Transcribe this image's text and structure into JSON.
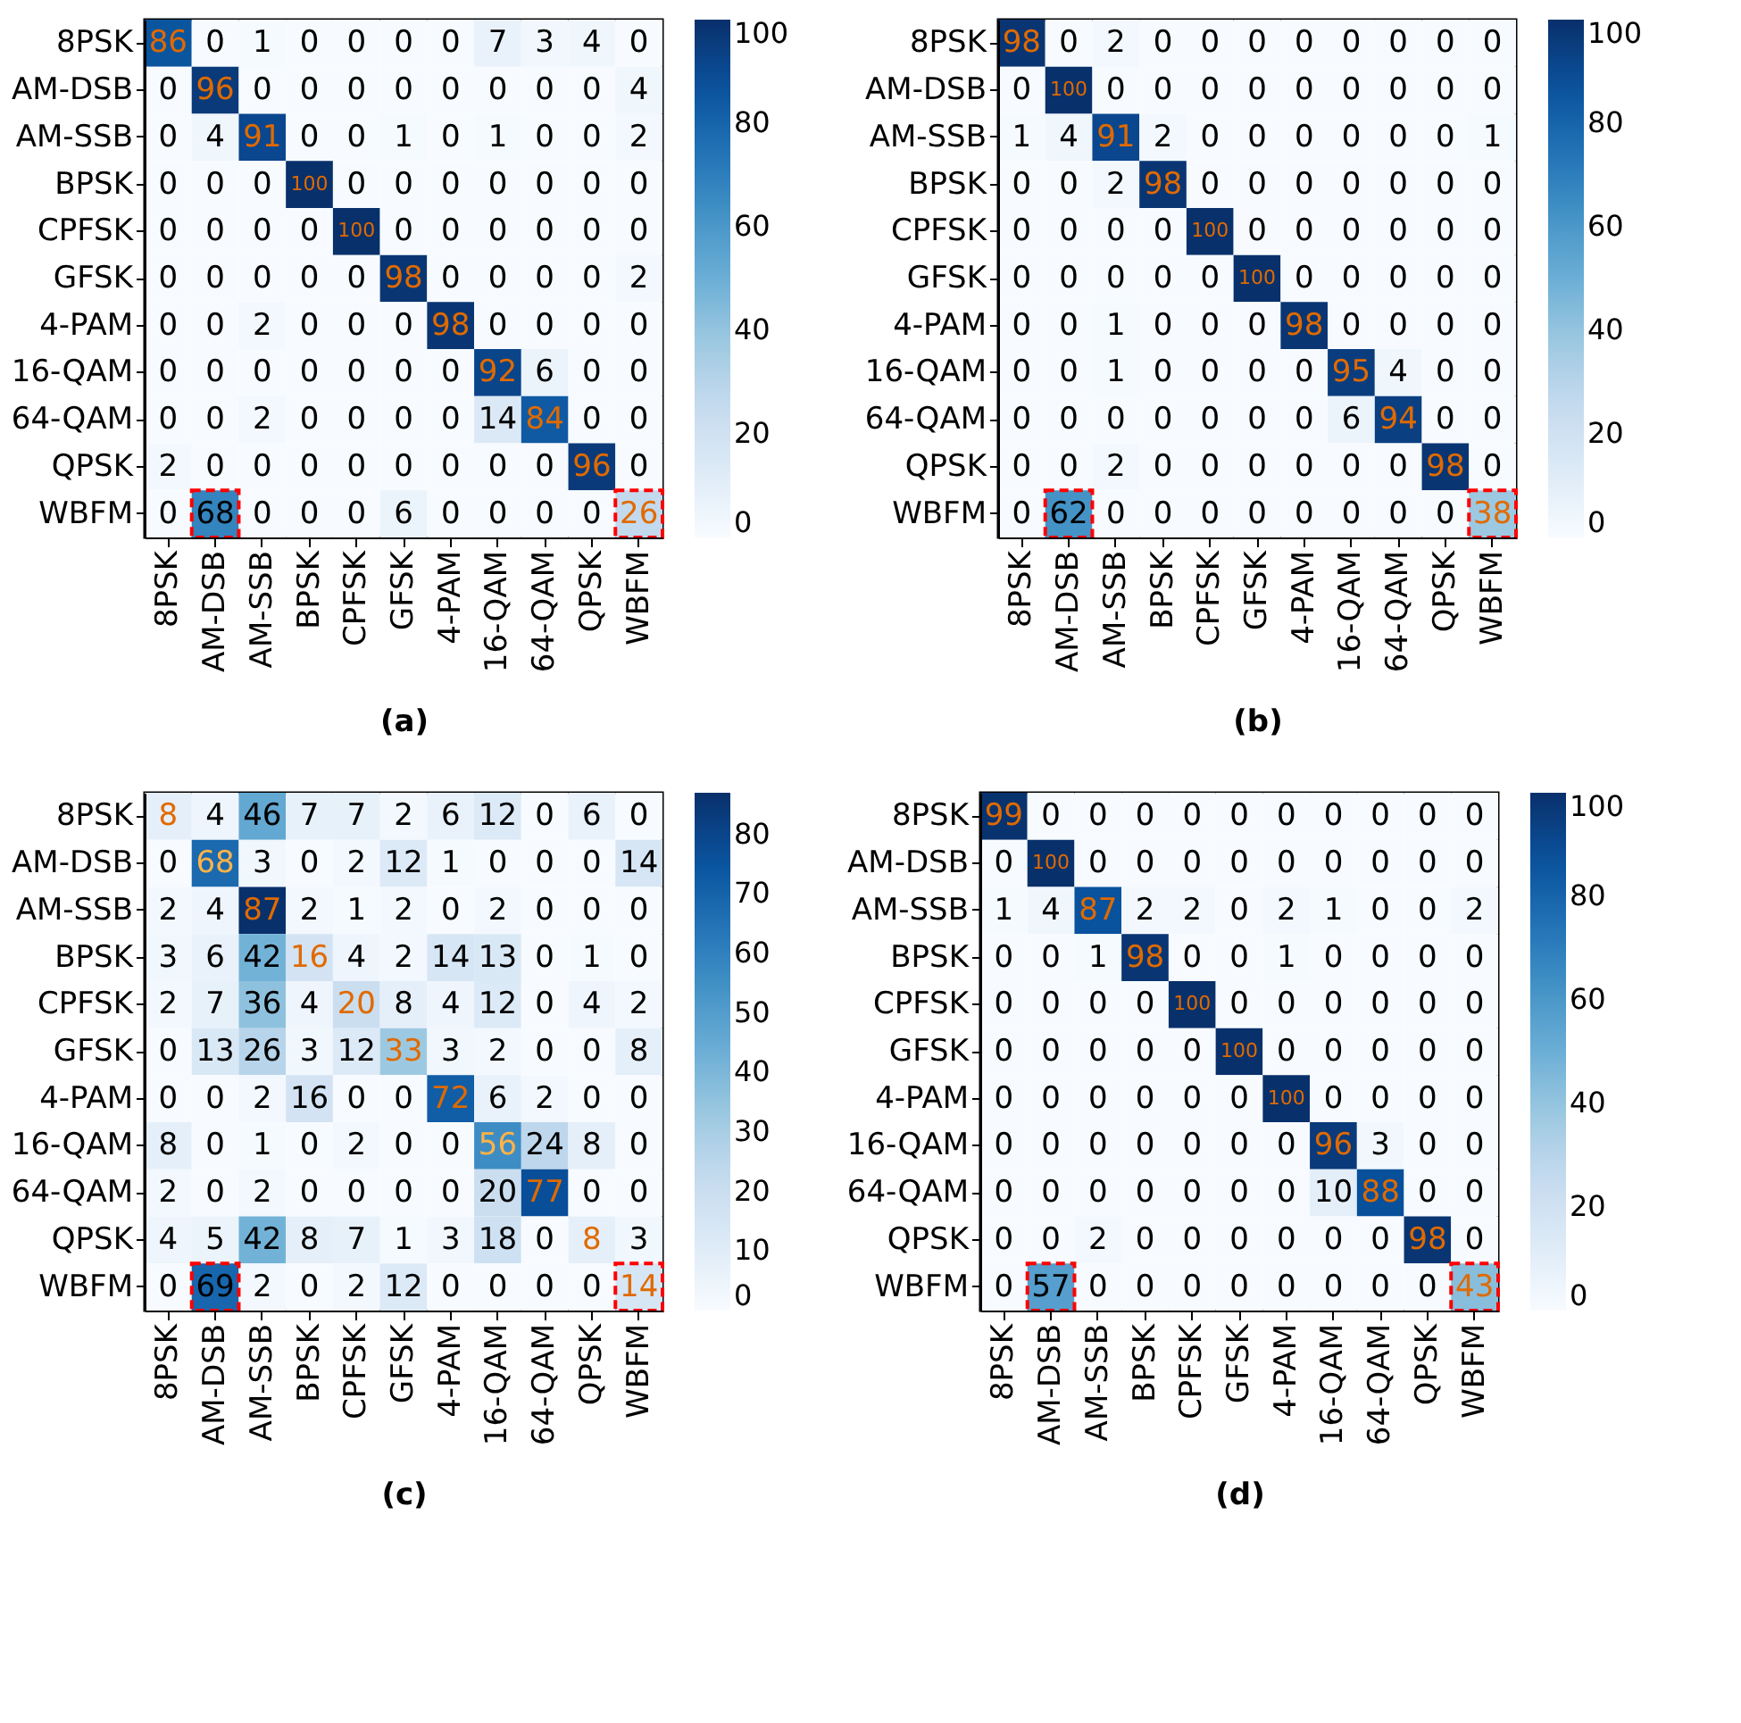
{
  "chart_data": [
    {
      "type": "heatmap",
      "data_labels": true,
      "xlabel": "(a)",
      "categories": [
        "8PSK",
        "AM-DSB",
        "AM-SSB",
        "BPSK",
        "CPFSK",
        "GFSK",
        "4-PAM",
        "16-QAM",
        "64-QAM",
        "QPSK",
        "WBFM"
      ],
      "y_categories": [
        "8PSK",
        "AM-DSB",
        "AM-SSB",
        "BPSK",
        "CPFSK",
        "GFSK",
        "4-PAM",
        "16-QAM",
        "64-QAM",
        "QPSK",
        "WBFM"
      ],
      "clim": [
        0,
        100
      ],
      "cticks": [
        0,
        20,
        40,
        60,
        80,
        100
      ],
      "cells": [
        [
          86,
          0,
          1,
          0,
          0,
          0,
          0,
          7,
          3,
          4,
          0
        ],
        [
          0,
          96,
          0,
          0,
          0,
          0,
          0,
          0,
          0,
          0,
          4
        ],
        [
          0,
          4,
          91,
          0,
          0,
          1,
          0,
          1,
          0,
          0,
          2
        ],
        [
          0,
          0,
          0,
          100,
          0,
          0,
          0,
          0,
          0,
          0,
          0
        ],
        [
          0,
          0,
          0,
          0,
          100,
          0,
          0,
          0,
          0,
          0,
          0
        ],
        [
          0,
          0,
          0,
          0,
          0,
          98,
          0,
          0,
          0,
          0,
          2
        ],
        [
          0,
          0,
          2,
          0,
          0,
          0,
          98,
          0,
          0,
          0,
          0
        ],
        [
          0,
          0,
          0,
          0,
          0,
          0,
          0,
          92,
          6,
          0,
          0
        ],
        [
          0,
          0,
          2,
          0,
          0,
          0,
          0,
          14,
          84,
          0,
          0
        ],
        [
          2,
          0,
          0,
          0,
          0,
          0,
          0,
          0,
          0,
          96,
          0
        ],
        [
          0,
          68,
          0,
          0,
          0,
          6,
          0,
          0,
          0,
          0,
          26
        ]
      ]
    },
    {
      "type": "heatmap",
      "data_labels": true,
      "xlabel": "(b)",
      "categories": [
        "8PSK",
        "AM-DSB",
        "AM-SSB",
        "BPSK",
        "CPFSK",
        "GFSK",
        "4-PAM",
        "16-QAM",
        "64-QAM",
        "QPSK",
        "WBFM"
      ],
      "y_categories": [
        "8PSK",
        "AM-DSB",
        "AM-SSB",
        "BPSK",
        "CPFSK",
        "GFSK",
        "4-PAM",
        "16-QAM",
        "64-QAM",
        "QPSK",
        "WBFM"
      ],
      "clim": [
        0,
        100
      ],
      "cticks": [
        0,
        20,
        40,
        60,
        80,
        100
      ],
      "cells": [
        [
          98,
          0,
          2,
          0,
          0,
          0,
          0,
          0,
          0,
          0,
          0
        ],
        [
          0,
          100,
          0,
          0,
          0,
          0,
          0,
          0,
          0,
          0,
          0
        ],
        [
          1,
          4,
          91,
          2,
          0,
          0,
          0,
          0,
          0,
          0,
          1
        ],
        [
          0,
          0,
          2,
          98,
          0,
          0,
          0,
          0,
          0,
          0,
          0
        ],
        [
          0,
          0,
          0,
          0,
          100,
          0,
          0,
          0,
          0,
          0,
          0
        ],
        [
          0,
          0,
          0,
          0,
          0,
          100,
          0,
          0,
          0,
          0,
          0
        ],
        [
          0,
          0,
          1,
          0,
          0,
          0,
          98,
          0,
          0,
          0,
          0
        ],
        [
          0,
          0,
          1,
          0,
          0,
          0,
          0,
          95,
          4,
          0,
          0
        ],
        [
          0,
          0,
          0,
          0,
          0,
          0,
          0,
          6,
          94,
          0,
          0
        ],
        [
          0,
          0,
          2,
          0,
          0,
          0,
          0,
          0,
          0,
          98,
          0
        ],
        [
          0,
          62,
          0,
          0,
          0,
          0,
          0,
          0,
          0,
          0,
          38
        ]
      ]
    },
    {
      "type": "heatmap",
      "data_labels": true,
      "xlabel": "(c)",
      "categories": [
        "8PSK",
        "AM-DSB",
        "AM-SSB",
        "BPSK",
        "CPFSK",
        "GFSK",
        "4-PAM",
        "16-QAM",
        "64-QAM",
        "QPSK",
        "WBFM"
      ],
      "y_categories": [
        "8PSK",
        "AM-DSB",
        "AM-SSB",
        "BPSK",
        "CPFSK",
        "GFSK",
        "4-PAM",
        "16-QAM",
        "64-QAM",
        "QPSK",
        "WBFM"
      ],
      "clim": [
        0,
        87
      ],
      "cticks": [
        0,
        10,
        20,
        30,
        40,
        50,
        60,
        70,
        80
      ],
      "cells": [
        [
          8,
          4,
          46,
          7,
          7,
          2,
          6,
          12,
          0,
          6,
          0
        ],
        [
          0,
          68,
          3,
          0,
          2,
          12,
          1,
          0,
          0,
          0,
          14
        ],
        [
          2,
          4,
          87,
          2,
          1,
          2,
          0,
          2,
          0,
          0,
          0
        ],
        [
          3,
          6,
          42,
          16,
          4,
          2,
          14,
          13,
          0,
          1,
          0
        ],
        [
          2,
          7,
          36,
          4,
          20,
          8,
          4,
          12,
          0,
          4,
          2
        ],
        [
          0,
          13,
          26,
          3,
          12,
          33,
          3,
          2,
          0,
          0,
          8
        ],
        [
          0,
          0,
          2,
          16,
          0,
          0,
          72,
          6,
          2,
          0,
          0
        ],
        [
          8,
          0,
          1,
          0,
          2,
          0,
          0,
          56,
          24,
          8,
          0
        ],
        [
          2,
          0,
          2,
          0,
          0,
          0,
          0,
          20,
          77,
          0,
          0
        ],
        [
          4,
          5,
          42,
          8,
          7,
          1,
          3,
          18,
          0,
          8,
          3
        ],
        [
          0,
          69,
          2,
          0,
          2,
          12,
          0,
          0,
          0,
          0,
          14
        ]
      ]
    },
    {
      "type": "heatmap",
      "data_labels": true,
      "xlabel": "(d)",
      "categories": [
        "8PSK",
        "AM-DSB",
        "AM-SSB",
        "BPSK",
        "CPFSK",
        "GFSK",
        "4-PAM",
        "16-QAM",
        "64-QAM",
        "QPSK",
        "WBFM"
      ],
      "y_categories": [
        "8PSK",
        "AM-DSB",
        "AM-SSB",
        "BPSK",
        "CPFSK",
        "GFSK",
        "4-PAM",
        "16-QAM",
        "64-QAM",
        "QPSK",
        "WBFM"
      ],
      "clim": [
        0,
        100
      ],
      "cticks": [
        0,
        20,
        40,
        60,
        80,
        100
      ],
      "cells": [
        [
          99,
          0,
          0,
          0,
          0,
          0,
          0,
          0,
          0,
          0,
          0
        ],
        [
          0,
          100,
          0,
          0,
          0,
          0,
          0,
          0,
          0,
          0,
          0
        ],
        [
          1,
          4,
          87,
          2,
          2,
          0,
          2,
          1,
          0,
          0,
          2
        ],
        [
          0,
          0,
          1,
          98,
          0,
          0,
          1,
          0,
          0,
          0,
          0
        ],
        [
          0,
          0,
          0,
          0,
          100,
          0,
          0,
          0,
          0,
          0,
          0
        ],
        [
          0,
          0,
          0,
          0,
          0,
          100,
          0,
          0,
          0,
          0,
          0
        ],
        [
          0,
          0,
          0,
          0,
          0,
          0,
          100,
          0,
          0,
          0,
          0
        ],
        [
          0,
          0,
          0,
          0,
          0,
          0,
          0,
          96,
          3,
          0,
          0
        ],
        [
          0,
          0,
          0,
          0,
          0,
          0,
          0,
          10,
          88,
          0,
          0
        ],
        [
          0,
          0,
          2,
          0,
          0,
          0,
          0,
          0,
          0,
          98,
          0
        ],
        [
          0,
          57,
          0,
          0,
          0,
          0,
          0,
          0,
          0,
          0,
          43
        ]
      ]
    }
  ]
}
